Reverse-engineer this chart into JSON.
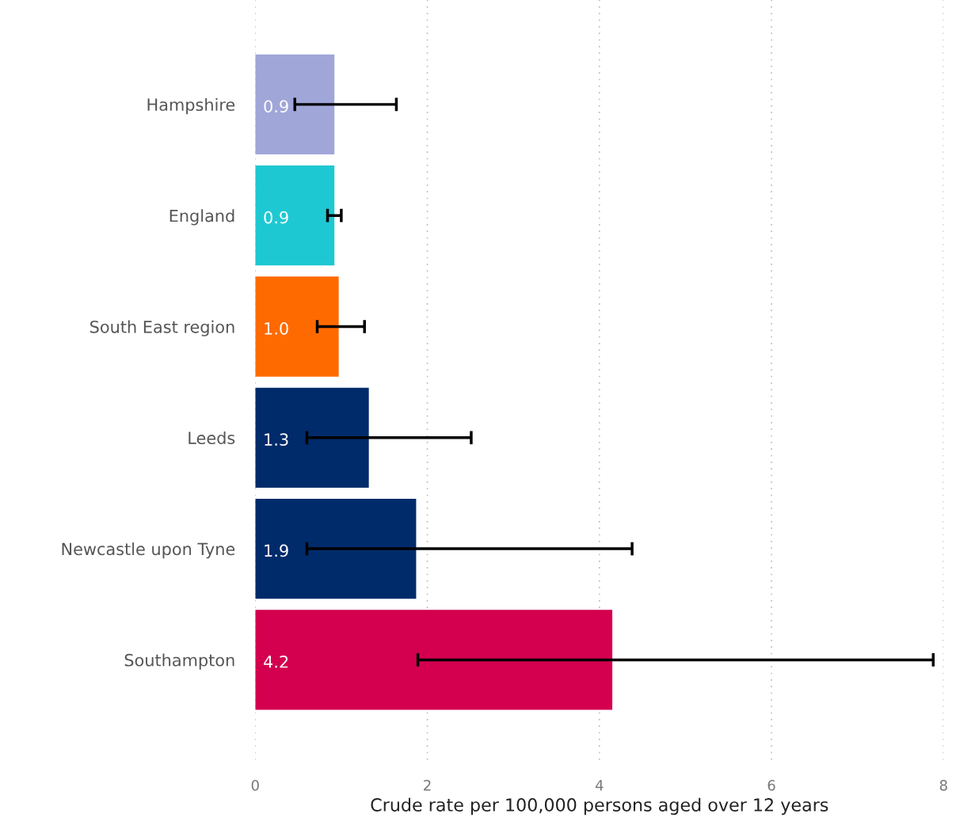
{
  "chart_data": {
    "type": "bar",
    "orientation": "horizontal",
    "xlabel": "Crude rate per 100,000 persons aged over 12 years",
    "categories": [
      "Hampshire",
      "England",
      "South East region",
      "Leeds",
      "Newcastle upon Tyne",
      "Southampton"
    ],
    "values": [
      0.92,
      0.92,
      0.97,
      1.32,
      1.87,
      4.15
    ],
    "value_labels": [
      "0.9",
      "0.9",
      "1.0",
      "1.3",
      "1.9",
      "4.2"
    ],
    "colors": [
      "#a0a6d8",
      "#1ec8d2",
      "#ff6a00",
      "#002b6b",
      "#002b6b",
      "#d4004f"
    ],
    "errors": [
      [
        0.46,
        1.64
      ],
      [
        0.84,
        1.0
      ],
      [
        0.72,
        1.27
      ],
      [
        0.6,
        2.51
      ],
      [
        0.6,
        4.38
      ],
      [
        1.89,
        7.88
      ]
    ],
    "xlim": [
      0,
      8
    ],
    "xticks": [
      0,
      2,
      4,
      6,
      8
    ],
    "grid": "x"
  }
}
